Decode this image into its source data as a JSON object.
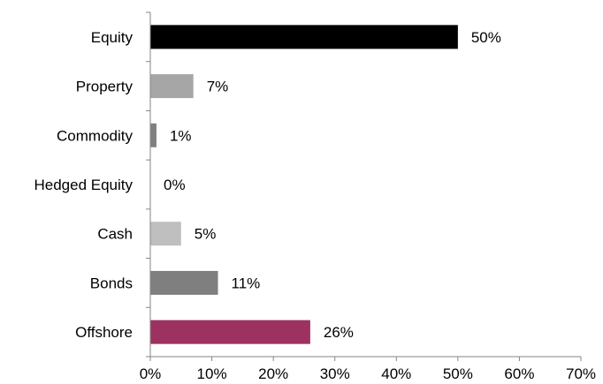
{
  "chart_data": {
    "type": "bar",
    "orientation": "horizontal",
    "categories": [
      "Equity",
      "Property",
      "Commodity",
      "Hedged Equity",
      "Cash",
      "Bonds",
      "Offshore"
    ],
    "values": [
      50,
      7,
      1,
      0,
      5,
      11,
      26
    ],
    "value_labels": [
      "50%",
      "7%",
      "1%",
      "0%",
      "5%",
      "11%",
      "26%"
    ],
    "colors": [
      "#000000",
      "#a6a6a6",
      "#808080",
      "#595959",
      "#bfbfbf",
      "#7f7f7f",
      "#9c325f"
    ],
    "xlim": [
      0,
      70
    ],
    "x_ticks": [
      0,
      10,
      20,
      30,
      40,
      50,
      60,
      70
    ],
    "x_tick_labels": [
      "0%",
      "10%",
      "20%",
      "30%",
      "40%",
      "50%",
      "60%",
      "70%"
    ],
    "grid": false,
    "legend": "none"
  }
}
